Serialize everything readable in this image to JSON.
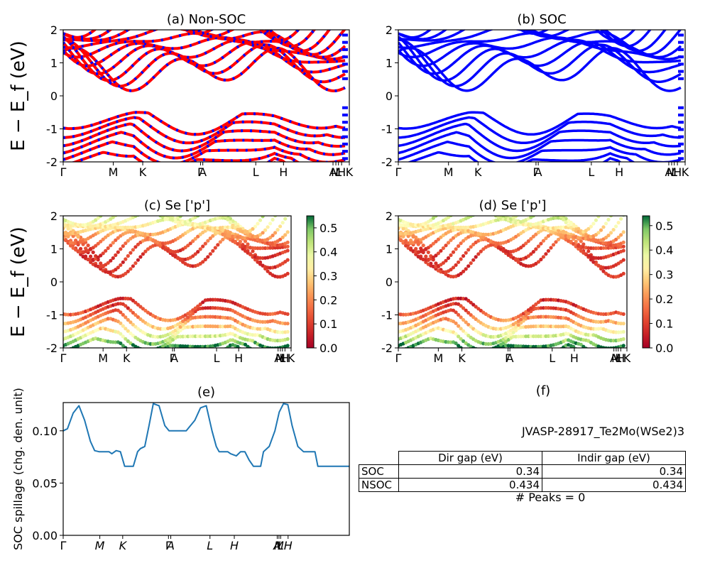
{
  "panel_f": {
    "title": "(f)",
    "job_id": "JVASP-28917_Te2Mo(WSe2)3",
    "table": {
      "columns": [
        "Dir gap (eV)",
        "Indir gap (eV)"
      ],
      "rows": [
        {
          "label": "SOC",
          "dir": "0.34",
          "indir": "0.34"
        },
        {
          "label": "NSOC",
          "dir": "0.434",
          "indir": "0.434"
        }
      ]
    },
    "peaks": "# Peaks = 0"
  },
  "chart_data": [
    {
      "id": "a",
      "type": "line",
      "title": "(a) Non-SOC",
      "ylabel": "E − E_f (eV)",
      "ylim": [
        -2,
        2
      ],
      "yticks": [
        -2,
        -1,
        0,
        1,
        2
      ],
      "xticks": [
        "Γ",
        "M",
        "K",
        "Γ",
        "A",
        "L",
        "H",
        "A",
        "M",
        "L",
        "H",
        "K"
      ],
      "colors": [
        "#ff0000",
        "#0000ff"
      ],
      "spin_polarized": true
    },
    {
      "id": "b",
      "type": "line",
      "title": "(b) SOC",
      "ylim": [
        -2,
        2
      ],
      "yticks": [
        -2,
        -1,
        0,
        1,
        2
      ],
      "xticks": [
        "Γ",
        "M",
        "K",
        "Γ",
        "A",
        "L",
        "H",
        "A",
        "M",
        "L",
        "H",
        "K"
      ],
      "colors": [
        "#0000ff"
      ]
    },
    {
      "id": "c",
      "type": "scatter",
      "title": "(c)  Se ['p']",
      "ylabel": "E − E_f (eV)",
      "ylim": [
        -2,
        2
      ],
      "yticks": [
        -2,
        -1,
        0,
        1,
        2
      ],
      "xticks": [
        "Γ",
        "M",
        "K",
        "Γ",
        "A",
        "L",
        "H",
        "A",
        "M",
        "L",
        "H",
        "K"
      ],
      "colorbar": {
        "range": [
          0,
          0.55
        ],
        "ticks": [
          "0.0",
          "0.1",
          "0.2",
          "0.3",
          "0.4",
          "0.5"
        ],
        "colormap": "RdYlGn"
      }
    },
    {
      "id": "d",
      "type": "scatter",
      "title": "(d) Se ['p']",
      "ylim": [
        -2,
        2
      ],
      "yticks": [
        -2,
        -1,
        0,
        1,
        2
      ],
      "xticks": [
        "Γ",
        "M",
        "K",
        "Γ",
        "A",
        "L",
        "H",
        "A",
        "M",
        "L",
        "H",
        "K"
      ],
      "colorbar": {
        "range": [
          0,
          0.54
        ],
        "ticks": [
          "0.0",
          "0.1",
          "0.2",
          "0.3",
          "0.4",
          "0.5"
        ],
        "colormap": "RdYlGn"
      }
    },
    {
      "id": "e",
      "type": "line",
      "title": "(e)",
      "ylabel": "SOC spillage (chg. den. unit)",
      "ylim": [
        0,
        0.127
      ],
      "yticks": [
        "0.00",
        "0.05",
        "0.10"
      ],
      "xticks": [
        "Γ",
        "M",
        "K",
        "Γ",
        "A",
        "L",
        "H",
        "A",
        "M",
        "L",
        "H"
      ],
      "xtick_positions": [
        0,
        0.128,
        0.208,
        0.368,
        0.376,
        0.513,
        0.598,
        0.748,
        0.754,
        0.76,
        0.786
      ],
      "x": [
        0,
        0.015,
        0.035,
        0.055,
        0.075,
        0.095,
        0.11,
        0.125,
        0.14,
        0.16,
        0.17,
        0.185,
        0.2,
        0.215,
        0.225,
        0.245,
        0.26,
        0.27,
        0.285,
        0.3,
        0.315,
        0.335,
        0.355,
        0.37,
        0.385,
        0.41,
        0.43,
        0.46,
        0.48,
        0.5,
        0.52,
        0.535,
        0.545,
        0.56,
        0.575,
        0.585,
        0.605,
        0.62,
        0.635,
        0.65,
        0.665,
        0.68,
        0.69,
        0.7,
        0.72,
        0.74,
        0.755,
        0.77,
        0.785,
        0.8,
        0.82,
        0.84,
        0.855,
        0.87,
        0.88,
        0.89,
        0.92,
        0.95,
        0.96,
        1.0
      ],
      "values": [
        0.1,
        0.102,
        0.117,
        0.124,
        0.11,
        0.09,
        0.081,
        0.08,
        0.08,
        0.08,
        0.078,
        0.081,
        0.08,
        0.066,
        0.066,
        0.066,
        0.08,
        0.083,
        0.085,
        0.105,
        0.126,
        0.124,
        0.105,
        0.1,
        0.1,
        0.1,
        0.1,
        0.11,
        0.122,
        0.124,
        0.1,
        0.085,
        0.08,
        0.08,
        0.08,
        0.078,
        0.076,
        0.08,
        0.08,
        0.072,
        0.066,
        0.066,
        0.066,
        0.08,
        0.085,
        0.1,
        0.118,
        0.126,
        0.125,
        0.105,
        0.085,
        0.08,
        0.08,
        0.08,
        0.08,
        0.066,
        0.066,
        0.066,
        0.066,
        0.066
      ],
      "series_color": "#1f77b4"
    }
  ]
}
